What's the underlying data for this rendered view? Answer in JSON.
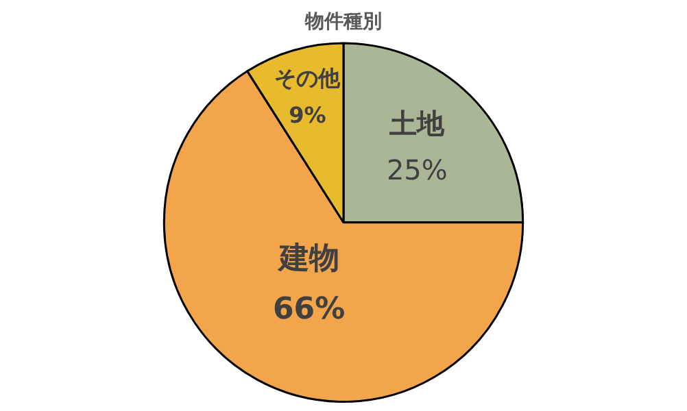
{
  "chart_data": {
    "type": "pie",
    "title": "物件種別",
    "categories": [
      "土地",
      "建物",
      "その他"
    ],
    "values": [
      25,
      66,
      9
    ],
    "colors": [
      "#a9b796",
      "#f2a54a",
      "#e8bb2e"
    ],
    "value_labels": [
      "25%",
      "66%",
      "9%"
    ],
    "legend": false
  }
}
